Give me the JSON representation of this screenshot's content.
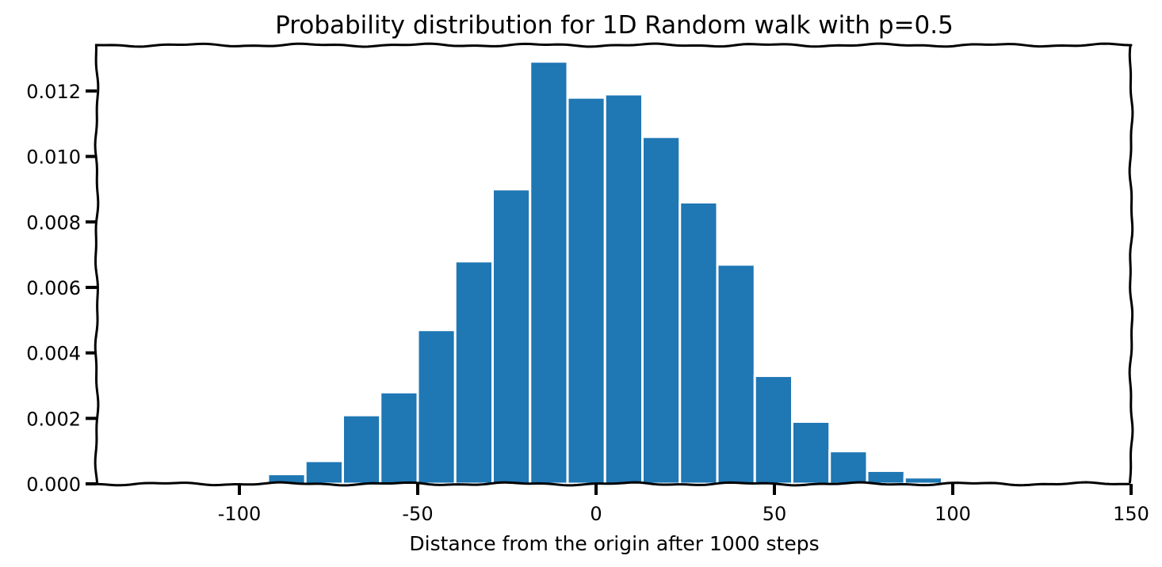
{
  "chart_data": {
    "type": "bar",
    "title": "Probability distribution for 1D Random walk with p=0.5",
    "xlabel": "Distance from the origin after 1000 steps",
    "ylabel": "",
    "xlim": [
      -140,
      150
    ],
    "ylim": [
      0,
      0.0134
    ],
    "grid": false,
    "bar_color": "#1f77b4",
    "bar_edge_color": "#ffffff",
    "frame_color": "#000000",
    "x_ticks": [
      -100,
      -50,
      0,
      50,
      100,
      150
    ],
    "x_tick_labels": [
      "-100",
      "-50",
      "0",
      "50",
      "100",
      "150"
    ],
    "y_ticks": [
      0.0,
      0.002,
      0.004,
      0.006,
      0.008,
      0.01,
      0.012
    ],
    "y_tick_labels": [
      "0.000",
      "0.002",
      "0.004",
      "0.006",
      "0.008",
      "0.010",
      "0.012"
    ],
    "bins": [
      {
        "x0": -102.5,
        "x1": -92.0,
        "value": 3e-05
      },
      {
        "x0": -92.0,
        "x1": -81.5,
        "value": 0.0003
      },
      {
        "x0": -81.5,
        "x1": -71.0,
        "value": 0.0007
      },
      {
        "x0": -71.0,
        "x1": -60.5,
        "value": 0.0021
      },
      {
        "x0": -60.5,
        "x1": -50.0,
        "value": 0.0028
      },
      {
        "x0": -50.0,
        "x1": -39.5,
        "value": 0.0047
      },
      {
        "x0": -39.5,
        "x1": -29.0,
        "value": 0.0068
      },
      {
        "x0": -29.0,
        "x1": -18.5,
        "value": 0.009
      },
      {
        "x0": -18.5,
        "x1": -8.0,
        "value": 0.0129
      },
      {
        "x0": -8.0,
        "x1": 2.5,
        "value": 0.0118
      },
      {
        "x0": 2.5,
        "x1": 13.0,
        "value": 0.0119
      },
      {
        "x0": 13.0,
        "x1": 23.5,
        "value": 0.0106
      },
      {
        "x0": 23.5,
        "x1": 34.0,
        "value": 0.0086
      },
      {
        "x0": 34.0,
        "x1": 44.5,
        "value": 0.0067
      },
      {
        "x0": 44.5,
        "x1": 55.0,
        "value": 0.0033
      },
      {
        "x0": 55.0,
        "x1": 65.5,
        "value": 0.0019
      },
      {
        "x0": 65.5,
        "x1": 76.0,
        "value": 0.001
      },
      {
        "x0": 76.0,
        "x1": 86.5,
        "value": 0.0004
      },
      {
        "x0": 86.5,
        "x1": 97.0,
        "value": 0.0002
      },
      {
        "x0": 97.0,
        "x1": 107.5,
        "value": 5e-05
      }
    ]
  }
}
